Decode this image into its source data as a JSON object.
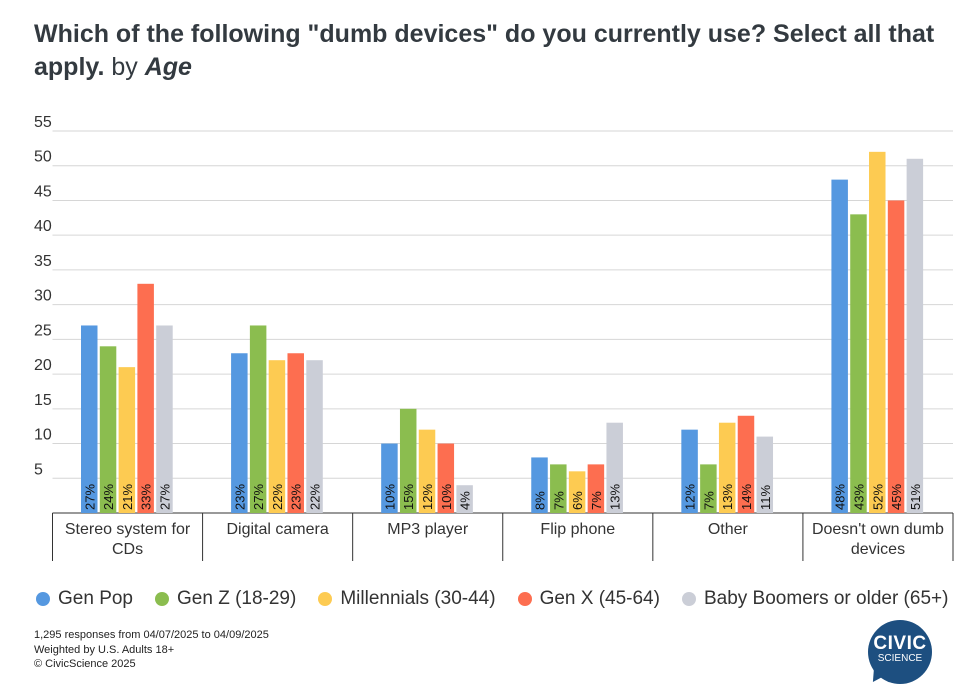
{
  "chart_data": {
    "type": "bar",
    "title": "Which of the following \"dumb devices\" do you currently use? Select all that apply.",
    "title_suffix_by": "by",
    "title_suffix_group": "Age",
    "categories": [
      [
        "Stereo system for",
        "CDs"
      ],
      [
        "Digital camera"
      ],
      [
        "MP3 player"
      ],
      [
        "Flip phone"
      ],
      [
        "Other"
      ],
      [
        "Doesn't own dumb",
        "devices"
      ]
    ],
    "series": [
      {
        "name": "Gen Pop",
        "color": "#5598e0",
        "values": [
          27,
          23,
          10,
          8,
          12,
          48
        ]
      },
      {
        "name": "Gen Z (18-29)",
        "color": "#8bbd4f",
        "values": [
          24,
          27,
          15,
          7,
          7,
          43
        ]
      },
      {
        "name": "Millennials (30-44)",
        "color": "#fdcb52",
        "values": [
          21,
          22,
          12,
          6,
          13,
          52
        ]
      },
      {
        "name": "Gen X (45-64)",
        "color": "#fd6e50",
        "values": [
          33,
          23,
          10,
          7,
          14,
          45
        ]
      },
      {
        "name": "Baby Boomers or older (65+)",
        "color": "#cbced7",
        "values": [
          27,
          22,
          4,
          13,
          11,
          51
        ]
      }
    ],
    "yticks": [
      5,
      10,
      15,
      20,
      25,
      30,
      35,
      40,
      45,
      50,
      55
    ],
    "ylim": [
      0,
      55
    ],
    "value_suffix": "%",
    "grid": true,
    "legend_position": "bottom"
  },
  "notes": [
    "1,295 responses from 04/07/2025 to 04/09/2025",
    "Weighted by U.S. Adults 18+",
    "© CivicScience 2025"
  ],
  "logo": {
    "line1": "CIVIC",
    "line2": "SCIENCE"
  }
}
